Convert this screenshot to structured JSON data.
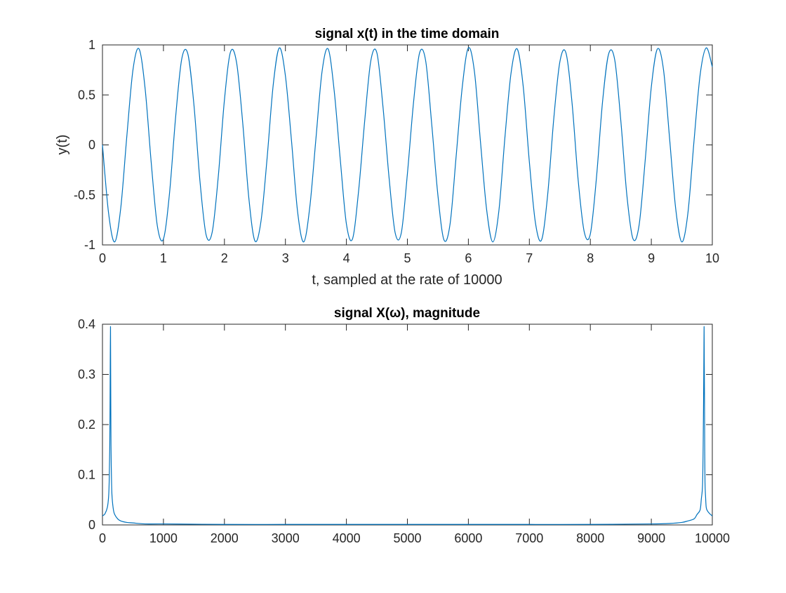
{
  "chart_data": [
    {
      "type": "line",
      "title": "signal x(t) in the time domain",
      "xlabel": "t, sampled at the rate of 10000",
      "ylabel": "y(t)",
      "xlim": [
        0,
        10
      ],
      "ylim": [
        -1,
        1
      ],
      "xticks": [
        0,
        1,
        2,
        3,
        4,
        5,
        6,
        7,
        8,
        9,
        10
      ],
      "xtick_labels": [
        "0",
        "1",
        "2",
        "3",
        "4",
        "5",
        "6",
        "7",
        "8",
        "9",
        "10"
      ],
      "yticks": [
        -1,
        -0.5,
        0,
        0.5,
        1
      ],
      "ytick_labels": [
        "-1",
        "-0.5",
        "0",
        "0.5",
        "1"
      ],
      "grid": false,
      "color": "#0072BD",
      "series": [
        {
          "x": [
            0,
            0.1,
            0.2,
            0.3,
            0.4,
            0.5,
            0.6,
            0.7,
            0.8,
            0.9,
            1.0,
            1.1,
            1.2,
            1.3,
            1.4,
            1.5,
            1.6,
            1.7,
            1.8,
            1.9,
            2.0,
            2.1,
            2.2,
            2.3,
            2.4,
            2.5,
            2.6,
            2.7,
            2.8,
            2.9,
            3.0,
            3.1,
            3.2,
            3.3,
            3.4,
            3.5,
            3.6,
            3.7,
            3.8,
            3.9,
            4.0,
            4.1,
            4.2,
            4.3,
            4.4,
            4.5,
            4.6,
            4.7,
            4.8,
            4.9,
            5.0,
            5.1,
            5.2,
            5.3,
            5.4,
            5.5,
            5.6,
            5.7,
            5.8,
            5.9,
            6.0,
            6.1,
            6.2,
            6.3,
            6.4,
            6.5,
            6.6,
            6.7,
            6.8,
            6.9,
            7.0,
            7.1,
            7.2,
            7.3,
            7.4,
            7.5,
            7.6,
            7.7,
            7.8,
            7.9,
            8.0,
            8.1,
            8.2,
            8.3,
            8.4,
            8.5,
            8.6,
            8.7,
            8.8,
            8.9,
            9.0,
            9.1,
            9.2,
            9.3,
            9.4,
            9.5,
            9.6,
            9.7,
            9.8,
            9.9,
            10.0
          ],
          "values": [
            0,
            -0.68,
            -0.97,
            -0.63,
            0.09,
            0.75,
            0.96,
            0.56,
            -0.18,
            -0.81,
            -0.94,
            -0.48,
            0.28,
            0.86,
            0.91,
            0.4,
            -0.37,
            -0.9,
            -0.87,
            -0.31,
            0.45,
            0.93,
            0.82,
            0.22,
            -0.53,
            -0.96,
            -0.76,
            -0.13,
            0.6,
            0.97,
            0.69,
            0.04,
            -0.67,
            -0.97,
            -0.62,
            0.06,
            0.73,
            0.96,
            0.54,
            -0.15,
            -0.79,
            -0.94,
            -0.46,
            0.24,
            0.84,
            0.92,
            0.38,
            -0.33,
            -0.88,
            -0.88,
            -0.29,
            0.42,
            0.92,
            0.84,
            0.2,
            -0.5,
            -0.95,
            -0.79,
            -0.11,
            0.58,
            0.97,
            0.73,
            0.02,
            -0.65,
            -0.97,
            -0.66,
            0.08,
            0.72,
            0.96,
            0.58,
            -0.17,
            -0.78,
            -0.95,
            -0.5,
            0.26,
            0.83,
            0.92,
            0.42,
            -0.35,
            -0.87,
            -0.89,
            -0.33,
            0.43,
            0.91,
            0.85,
            0.24,
            -0.51,
            -0.94,
            -0.8,
            -0.15,
            0.58,
            0.96,
            0.75,
            0.06,
            -0.64,
            -0.97,
            -0.68,
            0.04,
            0.7,
            0.97,
            0.78
          ]
        }
      ]
    },
    {
      "type": "line",
      "title": "signal X(ω), magnitude",
      "xlabel": "",
      "ylabel": "",
      "xlim": [
        0,
        10000
      ],
      "ylim": [
        0,
        0.4
      ],
      "xticks": [
        0,
        1000,
        2000,
        3000,
        4000,
        5000,
        6000,
        7000,
        8000,
        9000,
        10000
      ],
      "xtick_labels": [
        "0",
        "1000",
        "2000",
        "3000",
        "4000",
        "5000",
        "6000",
        "7000",
        "8000",
        "9000",
        "10000"
      ],
      "yticks": [
        0,
        0.1,
        0.2,
        0.3,
        0.4
      ],
      "ytick_labels": [
        "0",
        "0.1",
        "0.2",
        "0.3",
        "0.4"
      ],
      "grid": false,
      "color": "#0072BD",
      "series": [
        {
          "x": [
            0,
            40,
            80,
            100,
            110,
            120,
            125,
            128,
            132,
            135,
            140,
            150,
            160,
            180,
            200,
            250,
            300,
            400,
            500,
            700,
            1000,
            2000,
            3000,
            4000,
            5000,
            6000,
            7000,
            8000,
            9000,
            9300,
            9500,
            9600,
            9700,
            9750,
            9800,
            9820,
            9840,
            9850,
            9860,
            9865,
            9868,
            9872,
            9875,
            9880,
            9890,
            9900,
            9920,
            9960,
            10000
          ],
          "values": [
            0.018,
            0.022,
            0.035,
            0.055,
            0.085,
            0.16,
            0.25,
            0.33,
            0.395,
            0.3,
            0.16,
            0.08,
            0.052,
            0.03,
            0.021,
            0.012,
            0.008,
            0.005,
            0.004,
            0.002,
            0.002,
            0.001,
            0.001,
            0.001,
            0.001,
            0.001,
            0.001,
            0.001,
            0.002,
            0.003,
            0.005,
            0.008,
            0.012,
            0.021,
            0.03,
            0.052,
            0.08,
            0.16,
            0.3,
            0.395,
            0.33,
            0.25,
            0.16,
            0.085,
            0.055,
            0.035,
            0.028,
            0.022,
            0.018
          ]
        }
      ]
    }
  ]
}
